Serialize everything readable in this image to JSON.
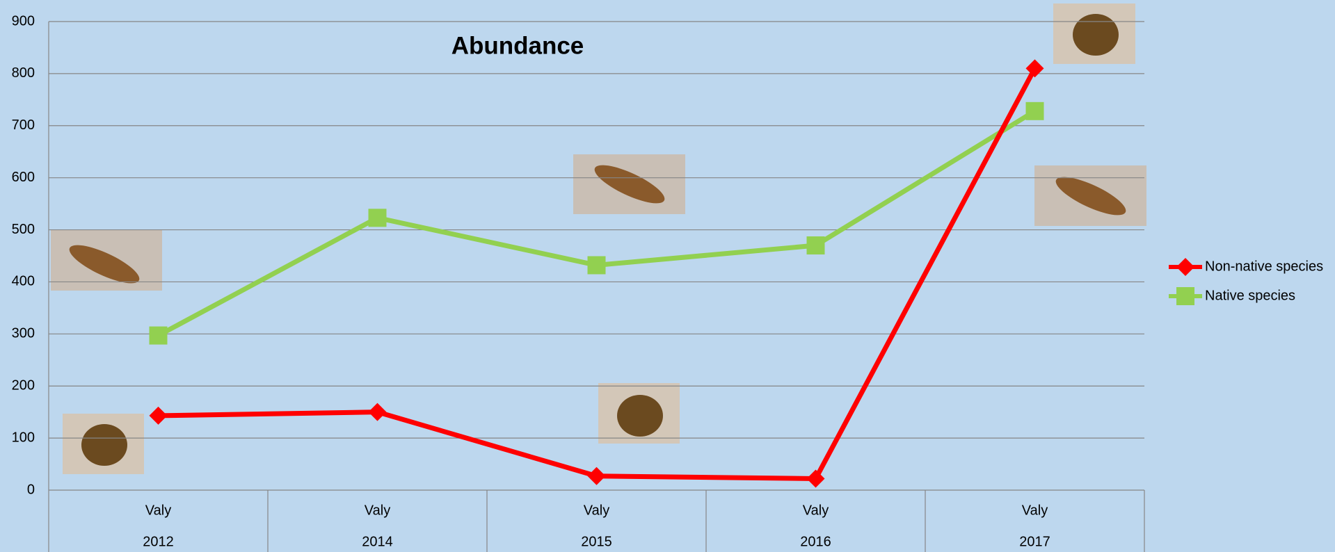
{
  "chart_data": {
    "type": "line",
    "title": "Abundance",
    "categories": [
      [
        "Valy",
        "2012"
      ],
      [
        "Valy",
        "2014"
      ],
      [
        "Valy",
        "2015"
      ],
      [
        "Valy",
        "2016"
      ],
      [
        "Valy",
        "2017"
      ]
    ],
    "series": [
      {
        "name": "Non-native species",
        "color": "#ff0000",
        "marker": "diamond",
        "values": [
          143,
          150,
          27,
          22,
          810
        ]
      },
      {
        "name": "Native species",
        "color": "#92d050",
        "marker": "square",
        "values": [
          297,
          523,
          432,
          470,
          728
        ]
      }
    ],
    "ylim": [
      0,
      900
    ],
    "yticks": [
      0,
      100,
      200,
      300,
      400,
      500,
      600,
      700,
      800,
      900
    ],
    "grid": true,
    "legend": "right"
  }
}
